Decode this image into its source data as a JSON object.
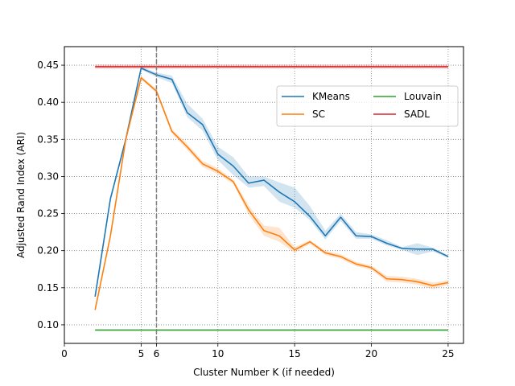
{
  "chart_data": {
    "type": "line",
    "title": "",
    "xlabel": "Cluster Number K (if needed)",
    "ylabel": "Adjusted Rand Index (ARI)",
    "xlim": [
      0,
      26
    ],
    "ylim": [
      0.075,
      0.475
    ],
    "xticks": [
      0,
      5,
      6,
      10,
      15,
      20,
      25
    ],
    "yticks": [
      0.1,
      0.15,
      0.2,
      0.25,
      0.3,
      0.35,
      0.4,
      0.45
    ],
    "grid": true,
    "grid_style": "dotted",
    "vline": {
      "x": 6,
      "style": "dashed",
      "color": "#808080"
    },
    "legend": {
      "placement": "upper-right",
      "columns": 2
    },
    "series": [
      {
        "name": "KMeans",
        "color": "#1f77b4",
        "x": [
          2,
          3,
          4,
          5,
          6,
          7,
          8,
          9,
          10,
          11,
          12,
          13,
          14,
          15,
          16,
          17,
          18,
          19,
          20,
          21,
          22,
          23,
          24,
          25
        ],
        "y": [
          0.138,
          0.27,
          0.35,
          0.446,
          0.437,
          0.431,
          0.386,
          0.37,
          0.33,
          0.314,
          0.291,
          0.295,
          0.279,
          0.266,
          0.246,
          0.22,
          0.245,
          0.22,
          0.219,
          0.21,
          0.203,
          0.202,
          0.202,
          0.192
        ],
        "band_upper": [
          0.138,
          0.27,
          0.35,
          0.448,
          0.44,
          0.436,
          0.398,
          0.378,
          0.34,
          0.326,
          0.3,
          0.3,
          0.292,
          0.285,
          0.26,
          0.227,
          0.25,
          0.225,
          0.222,
          0.214,
          0.205,
          0.21,
          0.204,
          0.194
        ],
        "band_lower": [
          0.138,
          0.27,
          0.35,
          0.444,
          0.434,
          0.426,
          0.38,
          0.362,
          0.322,
          0.302,
          0.285,
          0.287,
          0.266,
          0.258,
          0.241,
          0.215,
          0.24,
          0.216,
          0.216,
          0.207,
          0.201,
          0.194,
          0.199,
          0.19
        ]
      },
      {
        "name": "SC",
        "color": "#ff7f0e",
        "x": [
          2,
          3,
          4,
          5,
          6,
          7,
          8,
          9,
          10,
          11,
          12,
          13,
          14,
          15,
          16,
          17,
          18,
          19,
          20,
          21,
          22,
          23,
          24,
          25
        ],
        "y": [
          0.12,
          0.22,
          0.35,
          0.433,
          0.415,
          0.361,
          0.34,
          0.317,
          0.307,
          0.293,
          0.255,
          0.227,
          0.22,
          0.201,
          0.212,
          0.197,
          0.192,
          0.182,
          0.177,
          0.162,
          0.161,
          0.158,
          0.153,
          0.157
        ],
        "band_upper": [
          0.12,
          0.22,
          0.35,
          0.435,
          0.418,
          0.364,
          0.344,
          0.321,
          0.311,
          0.296,
          0.261,
          0.234,
          0.231,
          0.205,
          0.214,
          0.2,
          0.195,
          0.185,
          0.18,
          0.166,
          0.165,
          0.162,
          0.157,
          0.16
        ],
        "band_lower": [
          0.12,
          0.22,
          0.35,
          0.431,
          0.412,
          0.358,
          0.336,
          0.313,
          0.303,
          0.29,
          0.249,
          0.22,
          0.212,
          0.197,
          0.209,
          0.194,
          0.189,
          0.179,
          0.174,
          0.158,
          0.157,
          0.154,
          0.148,
          0.154
        ]
      },
      {
        "name": "Louvain",
        "color": "#2ca02c",
        "x": [
          2,
          25
        ],
        "y": [
          0.093,
          0.093
        ]
      },
      {
        "name": "SADL",
        "color": "#d62728",
        "x": [
          2,
          25
        ],
        "y": [
          0.448,
          0.448
        ],
        "band_upper": [
          0.451,
          0.451
        ],
        "band_lower": [
          0.445,
          0.445
        ]
      }
    ]
  }
}
